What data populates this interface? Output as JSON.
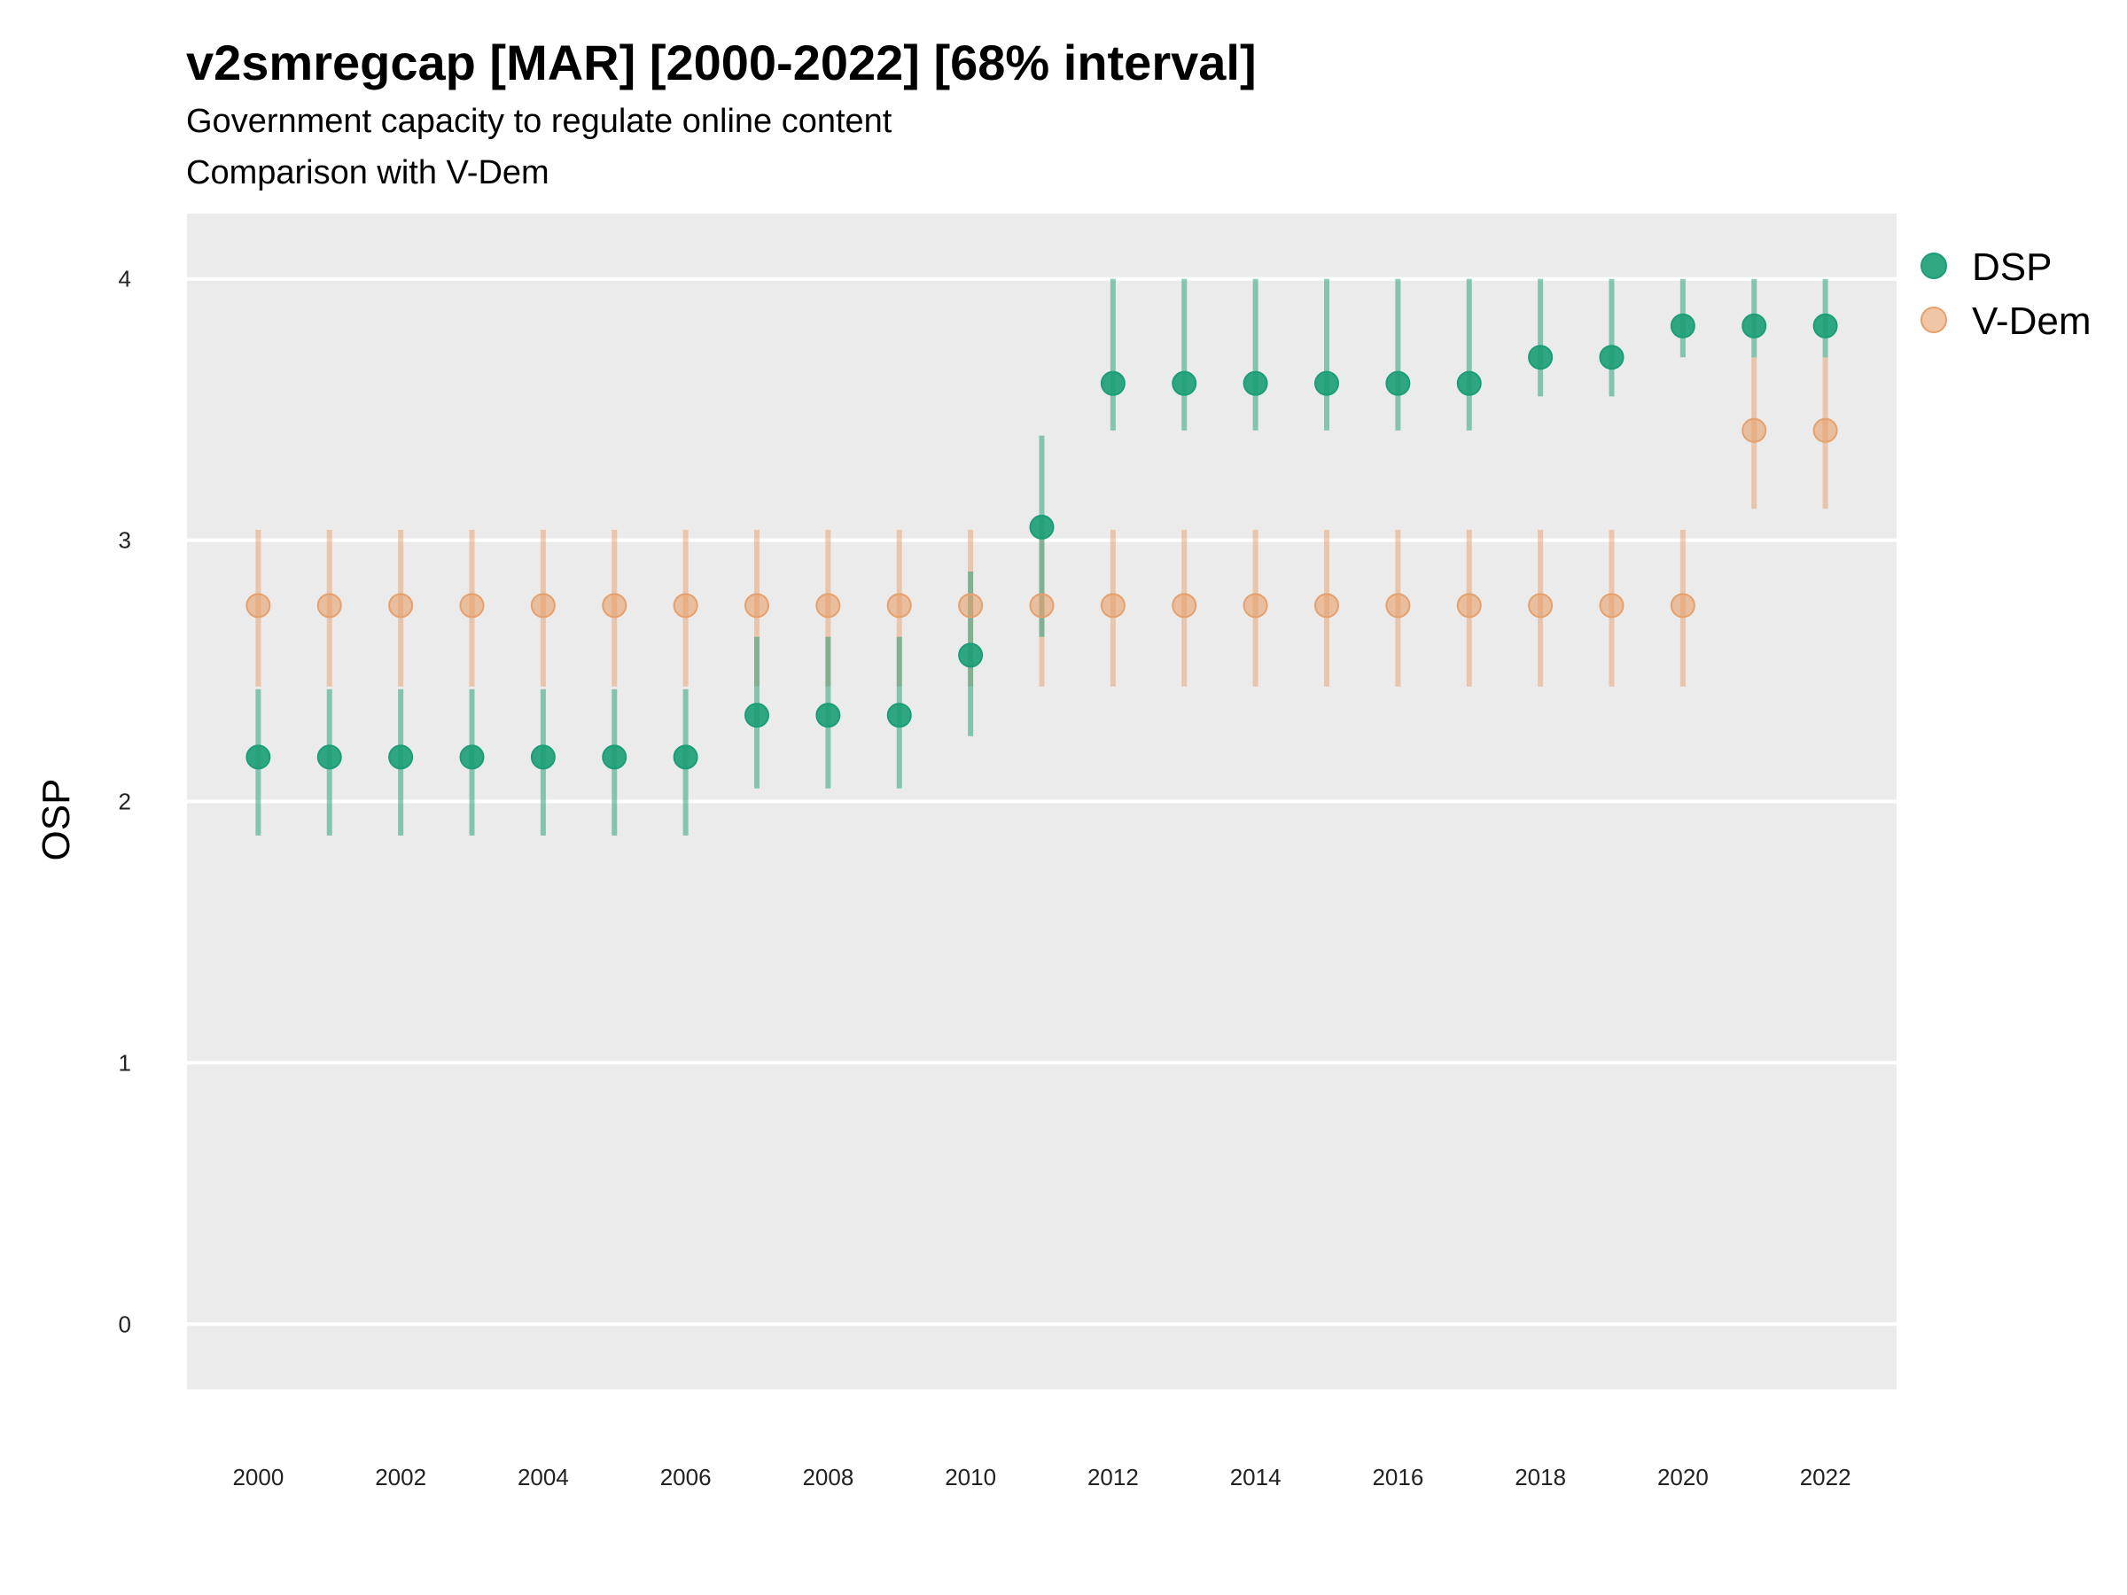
{
  "chart_data": {
    "type": "scatter",
    "title": "v2smregcap [MAR] [2000-2022] [68% interval]",
    "subtitle": "Government capacity to regulate online content",
    "subtitle2": "Comparison with V-Dem",
    "xlabel": "",
    "ylabel": "OSP",
    "xlim": [
      1999,
      2023
    ],
    "ylim": [
      -0.25,
      4.25
    ],
    "yticks": [
      0,
      1,
      2,
      3,
      4
    ],
    "xticks": [
      2000,
      2002,
      2004,
      2006,
      2008,
      2010,
      2012,
      2014,
      2016,
      2018,
      2020,
      2022
    ],
    "grid": true,
    "legend_position": "right",
    "series": [
      {
        "name": "DSP",
        "color": "#1b9e77",
        "x": [
          2000,
          2001,
          2002,
          2003,
          2004,
          2005,
          2006,
          2007,
          2008,
          2009,
          2010,
          2011,
          2012,
          2013,
          2014,
          2015,
          2016,
          2017,
          2018,
          2019,
          2020,
          2021,
          2022
        ],
        "y": [
          2.17,
          2.17,
          2.17,
          2.17,
          2.17,
          2.17,
          2.17,
          2.33,
          2.33,
          2.33,
          2.56,
          3.05,
          3.6,
          3.6,
          3.6,
          3.6,
          3.6,
          3.6,
          3.7,
          3.7,
          3.82,
          3.82,
          3.82
        ],
        "lower": [
          1.87,
          1.87,
          1.87,
          1.87,
          1.87,
          1.87,
          1.87,
          2.05,
          2.05,
          2.05,
          2.25,
          2.63,
          3.42,
          3.42,
          3.42,
          3.42,
          3.42,
          3.42,
          3.55,
          3.55,
          3.7,
          3.7,
          3.7
        ],
        "upper": [
          2.43,
          2.43,
          2.43,
          2.43,
          2.43,
          2.43,
          2.43,
          2.63,
          2.63,
          2.63,
          2.88,
          3.4,
          4.0,
          4.0,
          4.0,
          4.0,
          4.0,
          4.0,
          4.0,
          4.0,
          4.0,
          4.0,
          4.0
        ]
      },
      {
        "name": "V-Dem",
        "color": "#e6a06c",
        "x": [
          2000,
          2001,
          2002,
          2003,
          2004,
          2005,
          2006,
          2007,
          2008,
          2009,
          2010,
          2011,
          2012,
          2013,
          2014,
          2015,
          2016,
          2017,
          2018,
          2019,
          2020,
          2021,
          2022
        ],
        "y": [
          2.75,
          2.75,
          2.75,
          2.75,
          2.75,
          2.75,
          2.75,
          2.75,
          2.75,
          2.75,
          2.75,
          2.75,
          2.75,
          2.75,
          2.75,
          2.75,
          2.75,
          2.75,
          2.75,
          2.75,
          2.75,
          3.42,
          3.42
        ],
        "lower": [
          2.44,
          2.44,
          2.44,
          2.44,
          2.44,
          2.44,
          2.44,
          2.44,
          2.44,
          2.44,
          2.44,
          2.44,
          2.44,
          2.44,
          2.44,
          2.44,
          2.44,
          2.44,
          2.44,
          2.44,
          2.44,
          3.12,
          3.12
        ],
        "upper": [
          3.04,
          3.04,
          3.04,
          3.04,
          3.04,
          3.04,
          3.04,
          3.04,
          3.04,
          3.04,
          3.04,
          3.04,
          3.04,
          3.04,
          3.04,
          3.04,
          3.04,
          3.04,
          3.04,
          3.04,
          3.04,
          3.7,
          3.7
        ]
      }
    ]
  }
}
